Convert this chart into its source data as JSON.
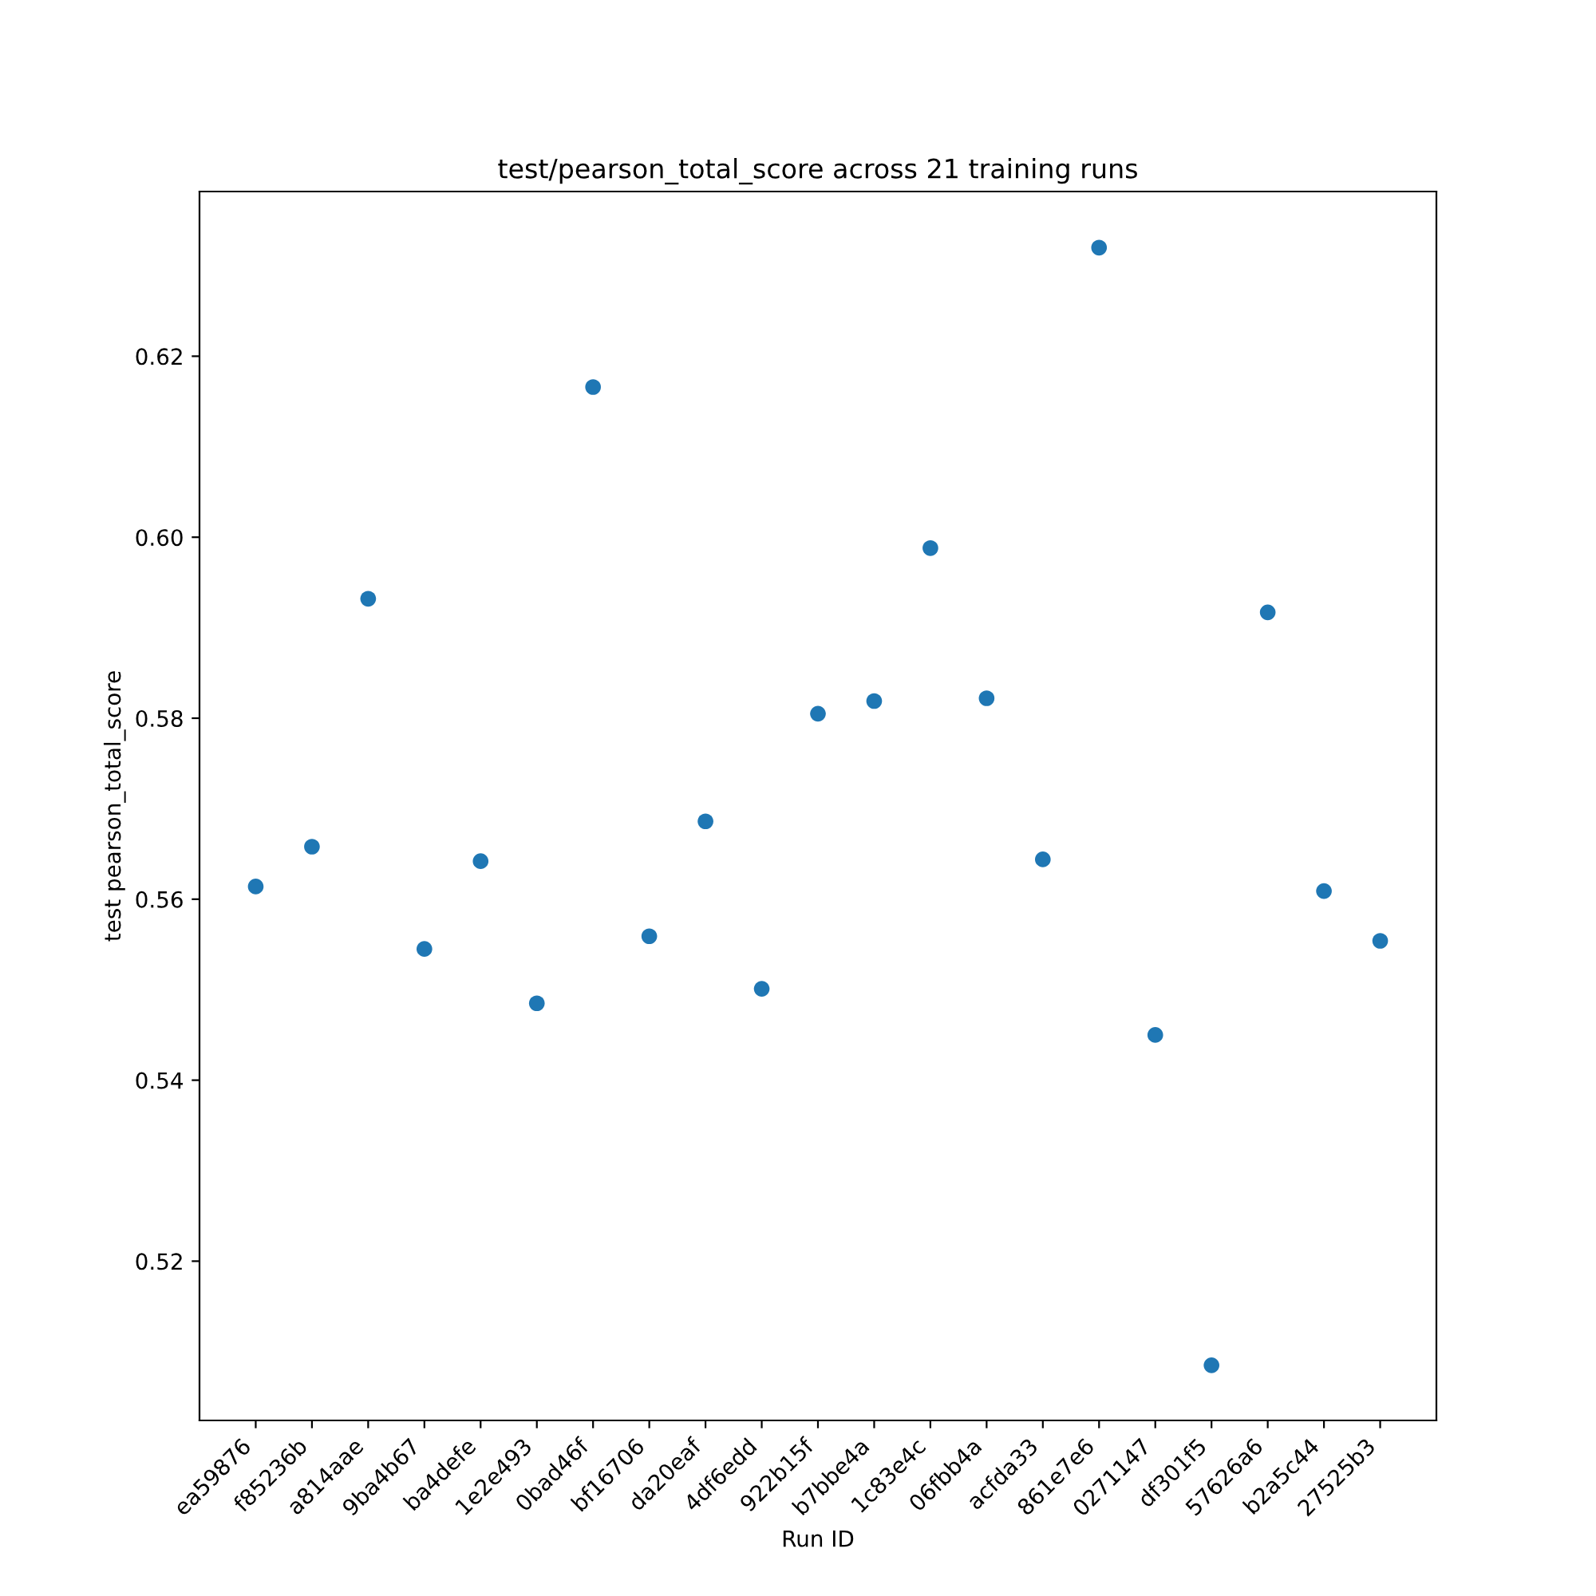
{
  "chart_data": {
    "type": "scatter",
    "title": "test/pearson_total_score across 21 training runs",
    "xlabel": "Run ID",
    "ylabel": "test pearson_total_score",
    "categories": [
      "ea59876",
      "f85236b",
      "a814aae",
      "9ba4b67",
      "ba4defe",
      "1e2e493",
      "0bad46f",
      "bf16706",
      "da20eaf",
      "4df6edd",
      "922b15f",
      "b7bbe4a",
      "1c83e4c",
      "06fbb4a",
      "acfda33",
      "861e7e6",
      "0271147",
      "df301f5",
      "57626a6",
      "b2a5c44",
      "27525b3"
    ],
    "series": [
      {
        "color": "#1f77b4",
        "values": [
          0.5614,
          0.5658,
          0.5932,
          0.5545,
          0.5642,
          0.5485,
          0.6166,
          0.5559,
          0.5686,
          0.5501,
          0.5805,
          0.5819,
          0.5988,
          0.5822,
          0.5644,
          0.632,
          0.545,
          0.5085,
          0.5917,
          0.5609,
          0.5554
        ]
      }
    ],
    "ylim": [
      0.5024,
      0.6382
    ],
    "yticks": [
      {
        "value": 0.52,
        "label": "0.52"
      },
      {
        "value": 0.54,
        "label": "0.54"
      },
      {
        "value": 0.56,
        "label": "0.56"
      },
      {
        "value": 0.58,
        "label": "0.58"
      },
      {
        "value": 0.6,
        "label": "0.60"
      },
      {
        "value": 0.62,
        "label": "0.62"
      }
    ],
    "marker": "circle",
    "grid": false,
    "legend": false
  }
}
